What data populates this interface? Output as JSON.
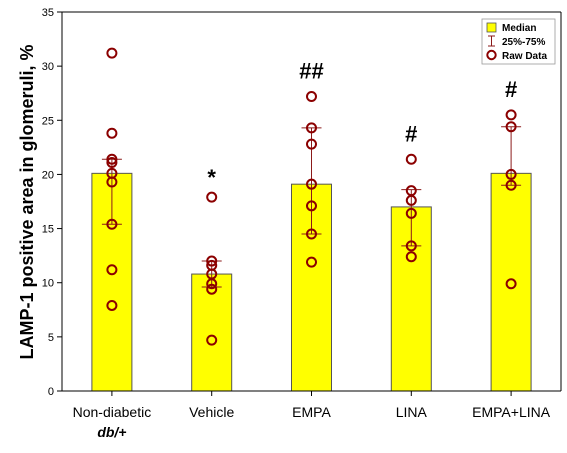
{
  "chart_data": {
    "type": "bar",
    "title": "",
    "xlabel": "",
    "ylabel": "LAMP-1 positive area in glomeruli, %",
    "ylim": [
      0,
      35
    ],
    "yticks": [
      0,
      5,
      10,
      15,
      20,
      25,
      30,
      35
    ],
    "grid": false,
    "legend_position": "top-right",
    "categories": [
      {
        "line1": "Non-diabetic",
        "line2": "db/+"
      },
      {
        "line1": "Vehicle",
        "line2": ""
      },
      {
        "line1": "EMPA",
        "line2": ""
      },
      {
        "line1": "LINA",
        "line2": ""
      },
      {
        "line1": "EMPA+LINA",
        "line2": ""
      }
    ],
    "series": [
      {
        "name": "Median",
        "values": [
          20.1,
          10.8,
          19.1,
          17.0,
          20.1
        ]
      },
      {
        "name": "25%-75%",
        "values": [
          [
            15.4,
            21.4
          ],
          [
            9.6,
            12.0
          ],
          [
            14.5,
            24.3
          ],
          [
            13.4,
            18.6
          ],
          [
            19.0,
            24.4
          ]
        ]
      },
      {
        "name": "Raw Data",
        "values": [
          [
            31.2,
            23.8,
            21.4,
            21.1,
            20.1,
            19.3,
            15.4,
            11.2,
            7.9
          ],
          [
            17.9,
            12.0,
            11.6,
            10.8,
            9.9,
            9.4,
            4.7
          ],
          [
            27.2,
            24.3,
            22.8,
            19.1,
            17.1,
            14.5,
            11.9
          ],
          [
            21.4,
            18.5,
            17.6,
            16.4,
            13.4,
            12.4
          ],
          [
            25.5,
            24.4,
            20.0,
            19.0,
            9.9
          ]
        ]
      }
    ],
    "annotations": [
      "",
      "*",
      "##",
      "#",
      "#"
    ],
    "colors": {
      "bar_fill": "#ffff00",
      "bar_stroke": "#555555",
      "whisker": "#8b1a1a",
      "point": "#8b0000"
    }
  }
}
